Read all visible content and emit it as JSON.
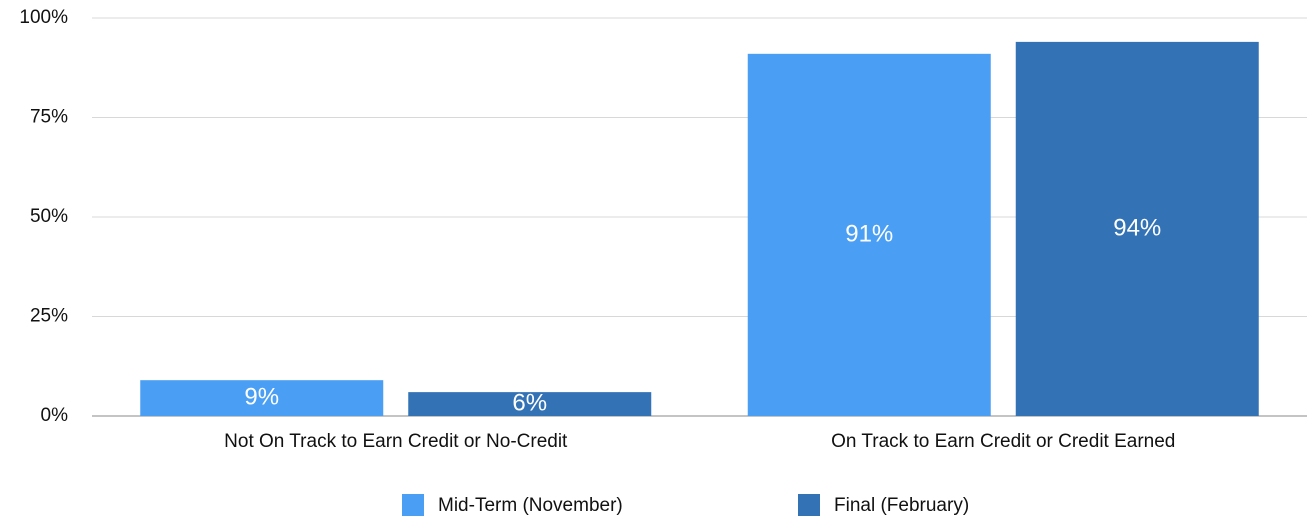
{
  "chart_data": {
    "type": "bar",
    "categories": [
      "Not On Track to Earn Credit or No-Credit",
      "On Track to Earn Credit or Credit Earned"
    ],
    "series": [
      {
        "name": "Mid-Term (November)",
        "color": "#4a9ff5",
        "values": [
          9,
          91
        ],
        "value_labels": [
          "9%",
          "91%"
        ]
      },
      {
        "name": "Final (February)",
        "color": "#3373b5",
        "values": [
          6,
          94
        ],
        "value_labels": [
          "6%",
          "94%"
        ]
      }
    ],
    "ylim": [
      0,
      100
    ],
    "yticks": [
      {
        "value": 0,
        "label": "0%"
      },
      {
        "value": 25,
        "label": "25%"
      },
      {
        "value": 50,
        "label": "50%"
      },
      {
        "value": 75,
        "label": "75%"
      },
      {
        "value": 100,
        "label": "100%"
      }
    ],
    "grid": true,
    "legend": "bottom"
  }
}
